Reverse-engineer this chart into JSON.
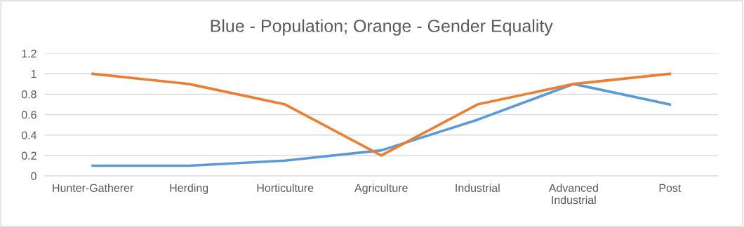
{
  "chart_data": {
    "type": "line",
    "title": "Blue - Population; Orange - Gender Equality",
    "categories": [
      "Hunter-Gatherer",
      "Herding",
      "Horticulture",
      "Agriculture",
      "Industrial",
      "Advanced\nIndustrial",
      "Post"
    ],
    "series": [
      {
        "color": "#5b9bd5",
        "values": [
          0.1,
          0.1,
          0.15,
          0.25,
          0.55,
          0.9,
          0.7
        ]
      },
      {
        "color": "#ed7d31",
        "values": [
          1,
          0.9,
          0.7,
          0.2,
          0.7,
          0.9,
          1
        ]
      }
    ],
    "ylim": [
      0,
      1.2
    ],
    "yticks": [
      0,
      0.2,
      0.4,
      0.6,
      0.8,
      1,
      1.2
    ],
    "grid": "y",
    "marker": "none",
    "line_style": "solid"
  }
}
